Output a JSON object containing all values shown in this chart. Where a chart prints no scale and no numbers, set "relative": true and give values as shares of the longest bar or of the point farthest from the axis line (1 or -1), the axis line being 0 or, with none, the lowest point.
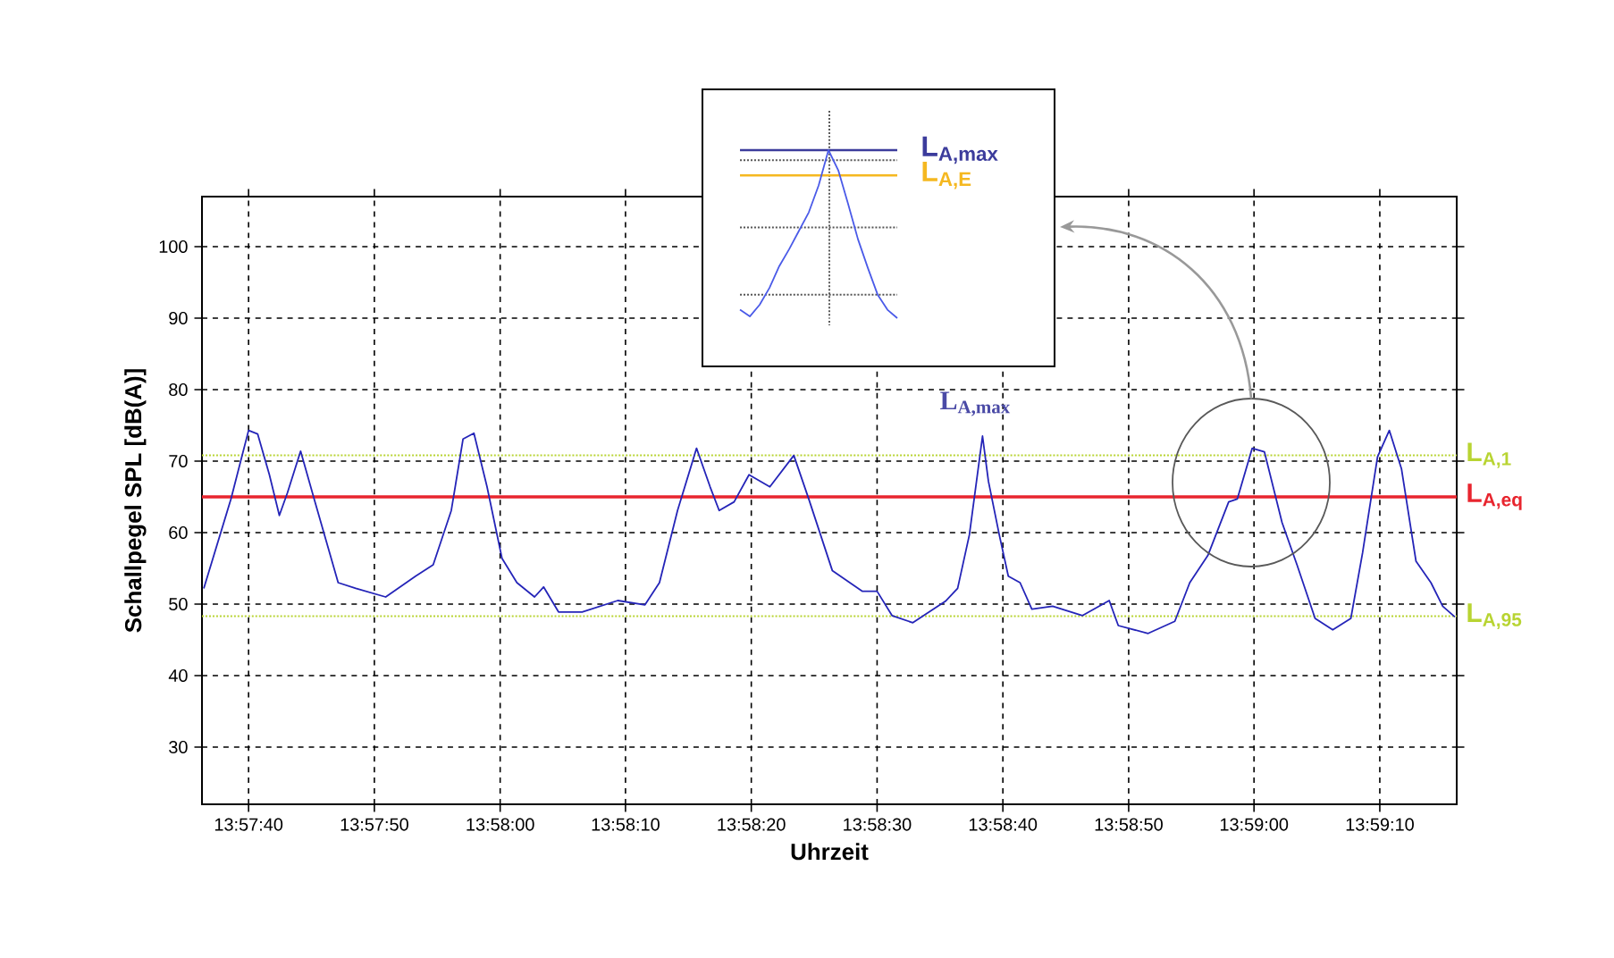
{
  "chart_data": [
    {
      "type": "line",
      "xlabel": "Uhrzeit",
      "ylabel": "Schallpegel SPL [dB(A)]",
      "xlim": [
        13.96008,
        13.98781
      ],
      "ylim": [
        22,
        107
      ],
      "xticks": [
        {
          "value": 13.96111,
          "label": "13:57:40"
        },
        {
          "value": 13.96389,
          "label": "13:57:50"
        },
        {
          "value": 13.96667,
          "label": "13:58:00"
        },
        {
          "value": 13.96944,
          "label": "13:58:10"
        },
        {
          "value": 13.97222,
          "label": "13:58:20"
        },
        {
          "value": 13.975,
          "label": "13:58:30"
        },
        {
          "value": 13.97778,
          "label": "13:58:40"
        },
        {
          "value": 13.98056,
          "label": "13:58:50"
        },
        {
          "value": 13.98333,
          "label": "13:59:00"
        },
        {
          "value": 13.98611,
          "label": "13:59:10"
        }
      ],
      "yticks": [
        30,
        40,
        50,
        60,
        70,
        80,
        90,
        100
      ],
      "grid": true,
      "marker": "none",
      "line_style": "solid",
      "series": [
        {
          "color": "#2424b8",
          "x": [
            13.96012,
            13.96072,
            13.96111,
            13.96131,
            13.96157,
            13.96179,
            13.96197,
            13.96226,
            13.96256,
            13.96309,
            13.96348,
            13.96414,
            13.9648,
            13.96519,
            13.96559,
            13.96585,
            13.96609,
            13.96638,
            13.96671,
            13.96704,
            13.96743,
            13.96763,
            13.96796,
            13.96848,
            13.96927,
            13.96987,
            13.97019,
            13.97059,
            13.97101,
            13.97131,
            13.97151,
            13.97184,
            13.97217,
            13.97263,
            13.97316,
            13.97349,
            13.97401,
            13.97467,
            13.975,
            13.97533,
            13.97579,
            13.97651,
            13.97678,
            13.97704,
            13.97733,
            13.97746,
            13.9777,
            13.9779,
            13.97816,
            13.97842,
            13.97888,
            13.97954,
            13.98013,
            13.98033,
            13.98099,
            13.98158,
            13.98191,
            13.98231,
            13.98277,
            13.98296,
            13.98329,
            13.98356,
            13.98395,
            13.98428,
            13.98468,
            13.98507,
            13.98547,
            13.98573,
            13.98606,
            13.98632,
            13.98659,
            13.98691,
            13.98724,
            13.9875,
            13.98777
          ],
          "values": [
            52.2,
            64.7,
            74.3,
            73.8,
            68.1,
            62.4,
            65.6,
            71.4,
            64.7,
            53.0,
            52.2,
            51.0,
            53.9,
            55.5,
            63.1,
            73.1,
            73.9,
            66.4,
            56.4,
            53.0,
            51.0,
            52.4,
            48.9,
            48.9,
            50.5,
            49.9,
            53.0,
            63.1,
            71.8,
            66.4,
            63.1,
            64.3,
            68.1,
            66.4,
            70.8,
            64.7,
            54.7,
            51.8,
            51.8,
            48.4,
            47.4,
            50.4,
            52.2,
            59.7,
            73.5,
            67.2,
            59.7,
            53.9,
            53.0,
            49.3,
            49.7,
            48.4,
            50.5,
            47.0,
            45.9,
            47.6,
            53.0,
            56.8,
            64.3,
            64.7,
            71.8,
            71.3,
            61.4,
            55.5,
            48.0,
            46.4,
            48.0,
            57.2,
            70.6,
            74.3,
            68.9,
            56.0,
            53.0,
            49.7,
            48.2
          ]
        }
      ],
      "ref_lines": [
        {
          "axis": "y",
          "value": 70.8,
          "label": "L$_{A,1}$",
          "color": "#b8d432",
          "line_style": "dotted"
        },
        {
          "axis": "y",
          "value": 65,
          "label": "L$_{A,eq}$",
          "color": "#e8252e",
          "line_style": "solid"
        },
        {
          "axis": "y",
          "value": 48.3,
          "label": "L$_{A,95}$",
          "color": "#b8d432",
          "line_style": "dotted"
        }
      ],
      "annotations": [
        {
          "text": "L$_{A,max}$",
          "x": 13.97733,
          "y": 73.5
        }
      ]
    },
    {
      "type": "line",
      "relative": true,
      "marker": "none",
      "line_style": "solid",
      "categories": [
        null,
        null,
        null,
        null,
        null,
        null,
        null,
        null,
        null,
        null,
        null,
        null,
        null,
        null,
        null,
        null,
        null
      ],
      "series": [
        {
          "color": "#4a5ae8",
          "values": [
            0.05,
            0.01,
            0.08,
            0.18,
            0.31,
            0.41,
            0.52,
            0.63,
            0.79,
            1,
            0.88,
            0.68,
            0.47,
            0.3,
            0.14,
            0.05,
            0
          ]
        }
      ],
      "ref_lines": [
        {
          "axis": "y",
          "value": 1,
          "label": "L$_{A,max}$",
          "color": "#3c3c9c",
          "line_style": "solid"
        },
        {
          "axis": "y",
          "value": 0.94,
          "color": "#555555",
          "line_style": "dotted"
        },
        {
          "axis": "y",
          "value": 0.85,
          "label": "L$_{A,E}$",
          "color": "#f5b820",
          "line_style": "solid"
        },
        {
          "axis": "y",
          "value": 0.54,
          "color": "#555555",
          "line_style": "dotted"
        },
        {
          "axis": "y",
          "value": 0.14,
          "color": "#555555",
          "line_style": "dotted"
        }
      ]
    }
  ]
}
